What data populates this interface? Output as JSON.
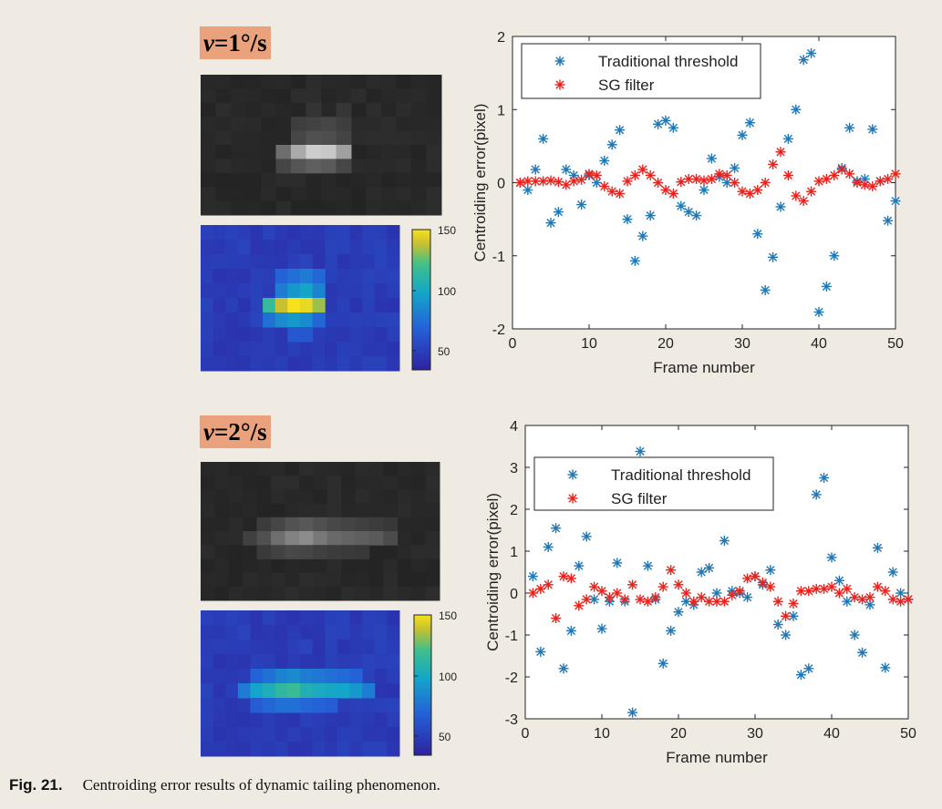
{
  "panels": [
    {
      "velocity": {
        "symbol": "v",
        "rest": "=1°/s"
      },
      "colorbar": {
        "ticks": [
          "150",
          "100",
          "50"
        ]
      }
    },
    {
      "velocity": {
        "symbol": "v",
        "rest": "=2°/s"
      },
      "colorbar": {
        "ticks": [
          "150",
          "100",
          "50"
        ]
      }
    }
  ],
  "caption": {
    "label": "Fig. 21.",
    "text": "Centroiding error results of dynamic tailing phenomenon."
  },
  "colors": {
    "traditional": "#1f77b4",
    "sg": "#e8221c",
    "heatmap_low": "#2e2ea8",
    "heatmap_high": "#f5e21c"
  },
  "chart_data": [
    {
      "type": "scatter",
      "xlabel": "Frame number",
      "ylabel": "Centroiding error(pixel)",
      "xlim": [
        0,
        50
      ],
      "ylim": [
        -2,
        2
      ],
      "xticks": [
        0,
        10,
        20,
        30,
        40,
        50
      ],
      "yticks": [
        2,
        1,
        0,
        -1,
        -2
      ],
      "legend_position": "top-left",
      "grid": false,
      "series": [
        {
          "name": "Traditional threshold",
          "x": [
            1,
            2,
            3,
            4,
            5,
            6,
            7,
            8,
            9,
            10,
            11,
            12,
            13,
            14,
            15,
            16,
            17,
            18,
            19,
            20,
            21,
            22,
            23,
            24,
            25,
            26,
            27,
            28,
            29,
            30,
            31,
            32,
            33,
            34,
            35,
            36,
            37,
            38,
            39,
            40,
            41,
            42,
            43,
            44,
            45,
            46,
            47,
            48,
            49,
            50
          ],
          "y": [
            0,
            -0.1,
            0.18,
            0.6,
            -0.55,
            -0.4,
            0.18,
            0.1,
            -0.3,
            0.1,
            0,
            0.3,
            0.52,
            0.72,
            -0.5,
            -1.07,
            -0.73,
            -0.45,
            0.8,
            0.85,
            0.75,
            -0.32,
            -0.4,
            -0.45,
            -0.1,
            0.33,
            0.08,
            0,
            0.2,
            0.65,
            0.82,
            -0.7,
            -1.47,
            -1.02,
            -0.33,
            0.6,
            1.0,
            1.68,
            1.77,
            -1.77,
            -1.42,
            -1.0,
            0.2,
            0.75,
            0.02,
            0.05,
            0.73,
            0.02,
            -0.52,
            -0.25
          ]
        },
        {
          "name": "SG filter",
          "x": [
            1,
            2,
            3,
            4,
            5,
            6,
            7,
            8,
            9,
            10,
            11,
            12,
            13,
            14,
            15,
            16,
            17,
            18,
            19,
            20,
            21,
            22,
            23,
            24,
            25,
            26,
            27,
            28,
            29,
            30,
            31,
            32,
            33,
            34,
            35,
            36,
            37,
            38,
            39,
            40,
            41,
            42,
            43,
            44,
            45,
            46,
            47,
            48,
            49,
            50
          ],
          "y": [
            0,
            0.02,
            0.02,
            0.02,
            0.03,
            0.01,
            -0.03,
            0.02,
            0.04,
            0.12,
            0.1,
            -0.05,
            -0.12,
            -0.15,
            0.02,
            0.1,
            0.18,
            0.1,
            0,
            -0.1,
            -0.15,
            0.01,
            0.05,
            0.05,
            0.03,
            0.05,
            0.12,
            0.1,
            0,
            -0.12,
            -0.15,
            -0.1,
            0,
            0.25,
            0.42,
            0.1,
            -0.18,
            -0.25,
            -0.12,
            0.02,
            0.05,
            0.1,
            0.18,
            0.12,
            0,
            -0.03,
            -0.05,
            0.02,
            0.05,
            0.12
          ]
        }
      ]
    },
    {
      "type": "scatter",
      "xlabel": "Frame number",
      "ylabel": "Centroiding error(pixel)",
      "xlim": [
        0,
        50
      ],
      "ylim": [
        -3,
        4
      ],
      "xticks": [
        0,
        10,
        20,
        30,
        40,
        50
      ],
      "yticks": [
        4,
        3,
        2,
        1,
        0,
        -1,
        -2,
        -3
      ],
      "legend_position": "top-left",
      "grid": false,
      "series": [
        {
          "name": "Traditional threshold",
          "x": [
            1,
            2,
            3,
            4,
            5,
            6,
            7,
            8,
            9,
            10,
            11,
            12,
            13,
            14,
            15,
            16,
            17,
            18,
            19,
            20,
            21,
            22,
            23,
            24,
            25,
            26,
            27,
            28,
            29,
            30,
            31,
            32,
            33,
            34,
            35,
            36,
            37,
            38,
            39,
            40,
            41,
            42,
            43,
            44,
            45,
            46,
            47,
            48,
            49,
            50
          ],
          "y": [
            0.4,
            -1.4,
            1.1,
            1.55,
            -1.8,
            -0.9,
            0.65,
            1.35,
            -0.15,
            -0.85,
            -0.2,
            0.72,
            -0.2,
            -2.85,
            3.38,
            0.65,
            -0.15,
            -1.68,
            -0.9,
            -0.45,
            -0.2,
            -0.28,
            0.5,
            0.6,
            0,
            1.25,
            0.05,
            0,
            -0.1,
            0.4,
            0.2,
            0.55,
            -0.75,
            -1,
            -0.55,
            -1.95,
            -1.8,
            2.35,
            2.75,
            0.85,
            0.3,
            -0.2,
            -1,
            -1.42,
            -0.28,
            1.08,
            -1.78,
            0.5,
            0,
            -0.15
          ]
        },
        {
          "name": "SG filter",
          "x": [
            1,
            2,
            3,
            4,
            5,
            6,
            7,
            8,
            9,
            10,
            11,
            12,
            13,
            14,
            15,
            16,
            17,
            18,
            19,
            20,
            21,
            22,
            23,
            24,
            25,
            26,
            27,
            28,
            29,
            30,
            31,
            32,
            33,
            34,
            35,
            36,
            37,
            38,
            39,
            40,
            41,
            42,
            43,
            44,
            45,
            46,
            47,
            48,
            49,
            50
          ],
          "y": [
            0,
            0.1,
            0.2,
            -0.6,
            0.4,
            0.35,
            -0.3,
            -0.15,
            0.15,
            0.05,
            -0.1,
            0,
            -0.15,
            0.2,
            -0.15,
            -0.2,
            -0.1,
            0.15,
            0.55,
            0.2,
            0,
            -0.2,
            -0.1,
            -0.2,
            -0.2,
            -0.2,
            -0.05,
            0.05,
            0.35,
            0.4,
            0.25,
            0.15,
            -0.2,
            -0.55,
            -0.25,
            0.05,
            0.05,
            0.1,
            0.1,
            0.15,
            0,
            0.1,
            -0.1,
            -0.15,
            -0.1,
            0.15,
            0.05,
            -0.15,
            -0.2,
            -0.15
          ]
        }
      ]
    }
  ]
}
